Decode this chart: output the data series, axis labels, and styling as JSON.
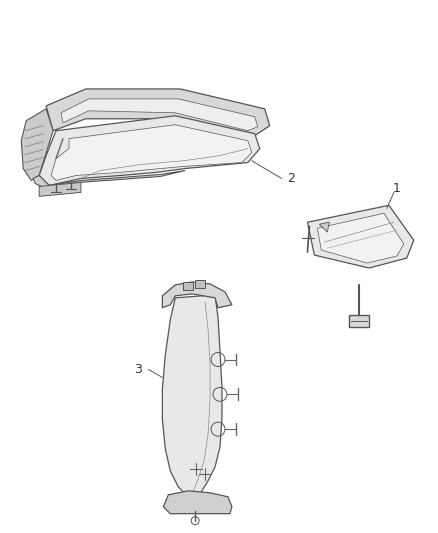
{
  "background_color": "#ffffff",
  "line_color": "#555555",
  "label_color": "#333333",
  "figsize": [
    4.38,
    5.33
  ],
  "dpi": 100
}
